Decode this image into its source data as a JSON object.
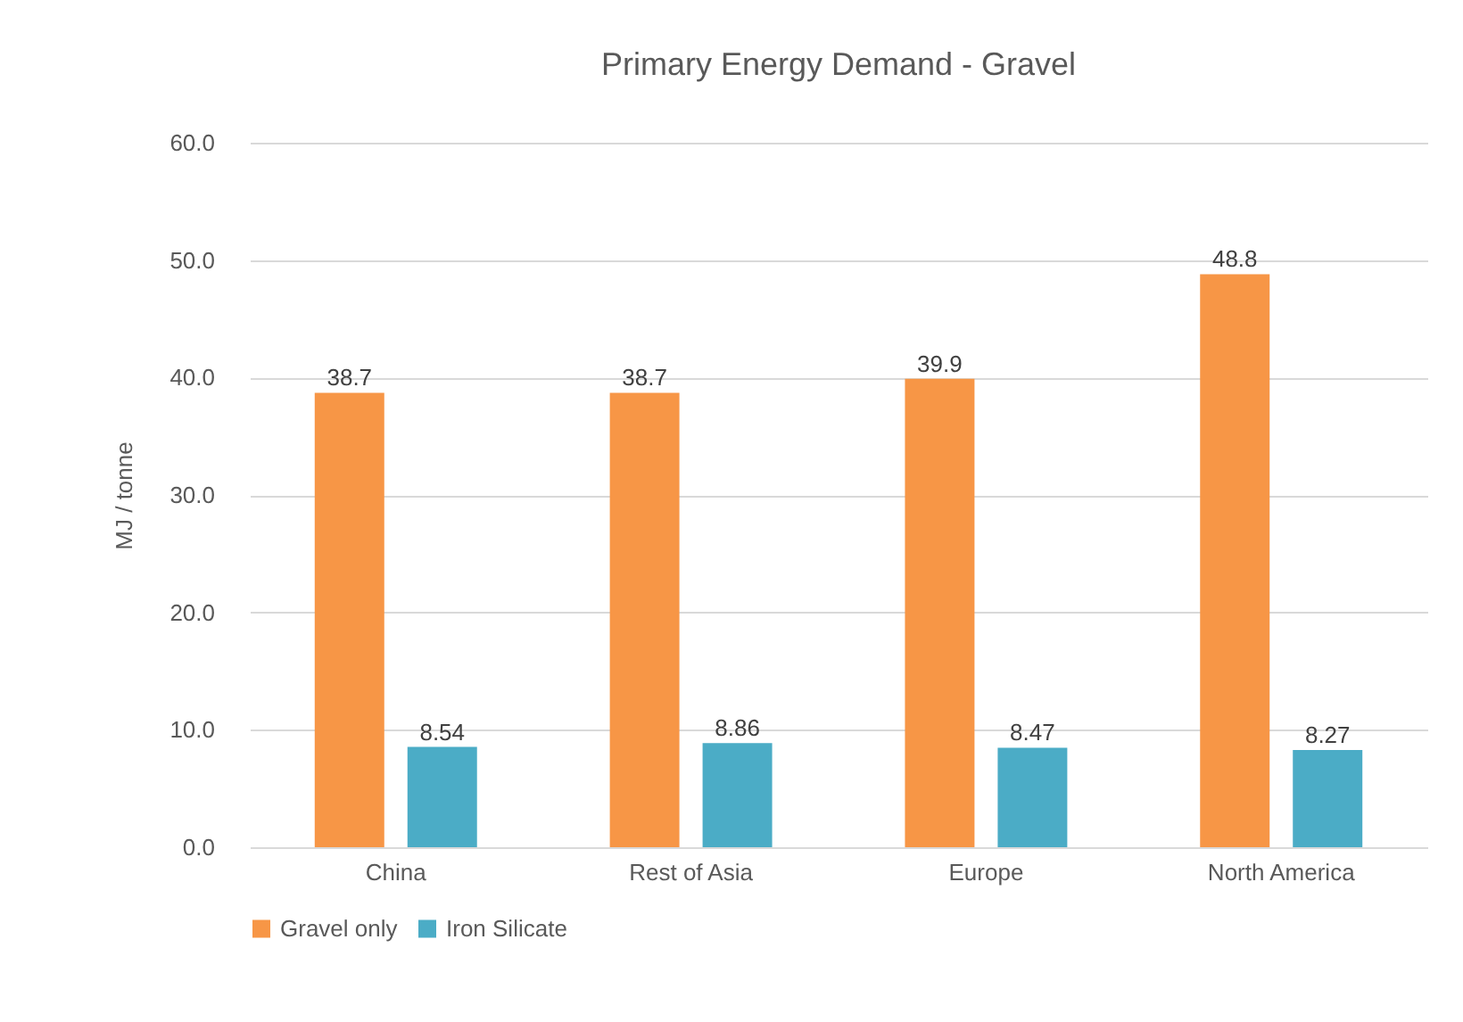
{
  "chart_data": {
    "type": "bar",
    "title": "Primary Energy Demand - Gravel",
    "ylabel": "MJ / tonne",
    "categories": [
      "China",
      "Rest of Asia",
      "Europe",
      "North America"
    ],
    "series": [
      {
        "name": "Gravel only",
        "color": "#f79646",
        "values": [
          38.7,
          38.7,
          39.9,
          48.8
        ]
      },
      {
        "name": "Iron Silicate",
        "color": "#4bacc6",
        "values": [
          8.54,
          8.86,
          8.47,
          8.27
        ]
      }
    ],
    "ylim": [
      0,
      60
    ],
    "yticks": [
      {
        "value": 0,
        "label": "0.0"
      },
      {
        "value": 10,
        "label": "10.0"
      },
      {
        "value": 20,
        "label": "20.0"
      },
      {
        "value": 30,
        "label": "30.0"
      },
      {
        "value": 40,
        "label": "40.0"
      },
      {
        "value": 50,
        "label": "50.0"
      },
      {
        "value": 60,
        "label": "60.0"
      }
    ],
    "grid": "y",
    "legend": "bottom",
    "data_labels": true
  }
}
